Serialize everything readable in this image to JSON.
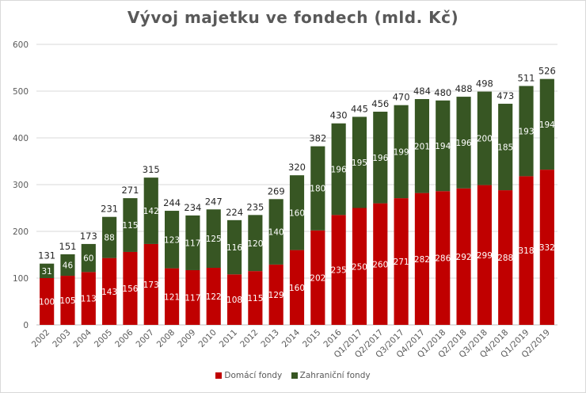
{
  "chart_data": {
    "type": "bar",
    "stacked": true,
    "title": "Vývoj majetku ve fondech (mld. Kč)",
    "xlabel": "",
    "ylabel": "",
    "ylim": [
      0,
      600
    ],
    "yticks": [
      0,
      100,
      200,
      300,
      400,
      500,
      600
    ],
    "grid": true,
    "legend_position": "bottom",
    "categories": [
      "2002",
      "2003",
      "2004",
      "2005",
      "2006",
      "2007",
      "2008",
      "2009",
      "2010",
      "2011",
      "2012",
      "2013",
      "2014",
      "2015",
      "2016",
      "Q1/2017",
      "Q2/2017",
      "Q3/2017",
      "Q4/2017",
      "Q1/2018",
      "Q2/2018",
      "Q3/2018",
      "Q4/2018",
      "Q1/2019",
      "Q2/2019"
    ],
    "series": [
      {
        "name": "Domácí fondy",
        "color": "#c00000",
        "values": [
          100,
          105,
          113,
          143,
          156,
          173,
          121,
          117,
          122,
          108,
          115,
          129,
          160,
          202,
          235,
          250,
          260,
          271,
          282,
          286,
          292,
          299,
          288,
          318,
          332
        ]
      },
      {
        "name": "Zahraniční fondy",
        "color": "#375623",
        "values": [
          31,
          46,
          60,
          88,
          115,
          142,
          123,
          117,
          125,
          116,
          120,
          140,
          160,
          180,
          196,
          195,
          196,
          199,
          201,
          194,
          196,
          200,
          185,
          193,
          194
        ]
      }
    ],
    "totals": [
      131,
      151,
      173,
      231,
      271,
      315,
      244,
      234,
      247,
      224,
      235,
      269,
      320,
      382,
      430,
      445,
      456,
      470,
      484,
      480,
      488,
      498,
      473,
      511,
      526
    ]
  }
}
